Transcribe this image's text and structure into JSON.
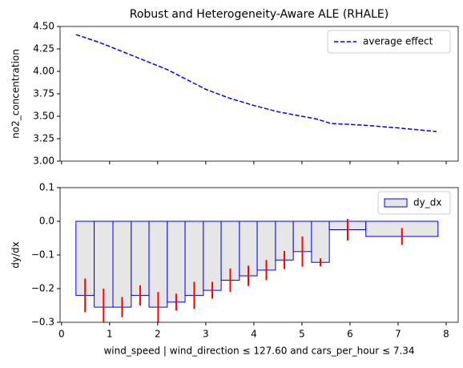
{
  "chart_data": [
    {
      "type": "line",
      "title": "Robust and Heterogeneity-Aware ALE (RHALE)",
      "ylabel": "no2_concentration",
      "x": [
        0.3,
        0.8,
        1.5,
        2.2,
        3.0,
        3.5,
        4.0,
        4.5,
        5.0,
        5.3,
        5.6,
        6.3,
        7.0,
        7.8
      ],
      "series": [
        {
          "name": "average effect",
          "color": "#0000ff",
          "dashed": true,
          "values": [
            4.41,
            4.32,
            4.17,
            4.02,
            3.8,
            3.7,
            3.62,
            3.55,
            3.5,
            3.47,
            3.42,
            3.4,
            3.37,
            3.33
          ]
        }
      ],
      "xlim": [
        -0.03,
        8.25
      ],
      "xticks": [
        0,
        1,
        2,
        3,
        4,
        5,
        6,
        7,
        8
      ],
      "xtick_labels": false,
      "ylim": [
        3.0,
        4.5
      ],
      "yticks": [
        {
          "value": 3.0,
          "label": "3.00"
        },
        {
          "value": 3.25,
          "label": "3.25"
        },
        {
          "value": 3.5,
          "label": "3.50"
        },
        {
          "value": 3.75,
          "label": "3.75"
        },
        {
          "value": 4.0,
          "label": "4.00"
        },
        {
          "value": 4.25,
          "label": "4.25"
        },
        {
          "value": 4.5,
          "label": "4.50"
        }
      ],
      "legend": "upper right"
    },
    {
      "type": "histogram",
      "ylabel": "dy/dx",
      "xlabel": "wind_speed | wind_direction ≤ 127.60 and cars_per_hour ≤ 7.34",
      "bins": [
        0.3,
        0.68,
        1.07,
        1.45,
        1.82,
        2.2,
        2.57,
        2.95,
        3.32,
        3.7,
        4.07,
        4.45,
        4.82,
        5.2,
        5.57,
        6.33,
        7.83
      ],
      "series": [
        {
          "name": "dy_dx",
          "color": "#0000ff",
          "fill": "#e6e6e6",
          "error_color": "#ff0000",
          "values": [
            -0.22,
            -0.255,
            -0.255,
            -0.22,
            -0.255,
            -0.24,
            -0.22,
            -0.205,
            -0.175,
            -0.162,
            -0.145,
            -0.115,
            -0.09,
            -0.122,
            -0.025,
            -0.045
          ],
          "errors": [
            0.05,
            0.055,
            0.03,
            0.03,
            0.045,
            0.025,
            0.04,
            0.025,
            0.035,
            0.03,
            0.03,
            0.027,
            0.045,
            0.012,
            0.032,
            0.025
          ]
        }
      ],
      "xlim": [
        -0.03,
        8.25
      ],
      "xticks": [
        0,
        1,
        2,
        3,
        4,
        5,
        6,
        7,
        8
      ],
      "xtick_labels": true,
      "ylim": [
        -0.3,
        0.1
      ],
      "yticks": [
        {
          "value": -0.3,
          "label": "−0.3"
        },
        {
          "value": -0.2,
          "label": "−0.2"
        },
        {
          "value": -0.1,
          "label": "−0.1"
        },
        {
          "value": 0,
          "label": "0.0"
        },
        0.1
      ],
      "legend": "upper right"
    }
  ]
}
